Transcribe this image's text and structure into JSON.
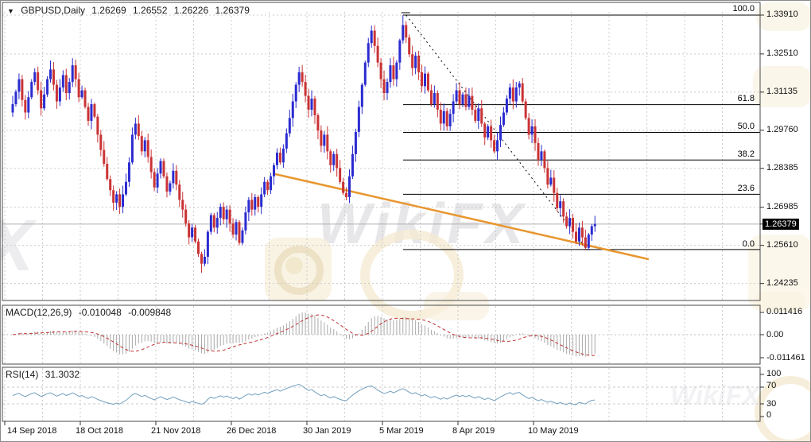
{
  "title_bar": {
    "dropdown_icon": "▼",
    "symbol": "GBPUSD,Daily",
    "open": "1.26269",
    "high": "1.26552",
    "low": "1.26226",
    "close": "1.26379"
  },
  "watermark": {
    "brand": "WikiFX",
    "left_fragment": "X",
    "corner_brand": "WikiFX"
  },
  "colors": {
    "bull": "#2B2BD0",
    "bear": "#CA3335",
    "grid": "#CBCBCB",
    "fib_line": "#000000",
    "trendline_orange": "#E8962F",
    "macd_histogram": "#A9A9A9",
    "macd_signal": "#C03030",
    "rsi_line": "#72A0BE",
    "current_price_line": "#B0B0B0",
    "current_price_bg": "#000000",
    "current_price_text": "#FFFFFF"
  },
  "price_axis": {
    "ticks": [
      "1.33910",
      "1.32510",
      "1.31135",
      "1.29760",
      "1.28385",
      "1.26985",
      "1.25610",
      "1.24235"
    ],
    "tick_values": [
      1.3391,
      1.3251,
      1.31135,
      1.2976,
      1.28385,
      1.26985,
      1.2561,
      1.24235
    ],
    "current_label": "1.26379",
    "current_value": 1.26379
  },
  "date_axis": {
    "labels": [
      "14 Sep 2018",
      "18 Oct 2018",
      "21 Nov 2018",
      "26 Dec 2018",
      "30 Jan 2019",
      "5 Mar 2019",
      "8 Apr 2019",
      "10 May 2019"
    ]
  },
  "macd_panel": {
    "header": "MACD(12,26,9)",
    "value_main": "-0.010048",
    "value_signal": "-0.009848",
    "axis": [
      "0.011416",
      "0.00",
      "-0.011461"
    ]
  },
  "rsi_panel": {
    "header": "RSI(14)",
    "value": "31.3032",
    "axis": [
      "100",
      "70",
      "30",
      "0"
    ],
    "overbought": 70,
    "oversold": 30
  },
  "chart_data": {
    "type": "candlestick",
    "symbol": "GBPUSD",
    "timeframe": "Daily",
    "title": "GBPUSD Daily with Fibonacci retracement, MACD(12,26,9), RSI(14)",
    "last_ohlc": {
      "open": 1.26269,
      "high": 1.26552,
      "low": 1.26226,
      "close": 1.26379
    },
    "price_axis_range": [
      1.24235,
      1.3391
    ],
    "closes": [
      1.307,
      1.3115,
      1.316,
      1.3085,
      1.304,
      1.3095,
      1.315,
      1.3185,
      1.312,
      1.3055,
      1.3105,
      1.316,
      1.3195,
      1.314,
      1.308,
      1.313,
      1.3175,
      1.311,
      1.315,
      1.321,
      1.316,
      1.3095,
      1.312,
      1.306,
      1.301,
      1.307,
      1.3025,
      1.296,
      1.2905,
      1.2855,
      1.28,
      1.276,
      1.2715,
      1.2745,
      1.27,
      1.2745,
      1.279,
      1.286,
      1.296,
      1.3,
      1.2955,
      1.29,
      1.294,
      1.288,
      1.2825,
      1.277,
      1.282,
      1.2865,
      1.281,
      1.2755,
      1.2785,
      1.283,
      1.278,
      1.2725,
      1.269,
      1.264,
      1.259,
      1.2625,
      1.2575,
      1.253,
      1.2495,
      1.252,
      1.261,
      1.267,
      1.2625,
      1.266,
      1.27,
      1.2655,
      1.269,
      1.264,
      1.26,
      1.2645,
      1.257,
      1.2615,
      1.268,
      1.2725,
      1.269,
      1.2735,
      1.27,
      1.2745,
      1.279,
      1.276,
      1.281,
      1.285,
      1.2895,
      1.286,
      1.291,
      1.2965,
      1.302,
      1.308,
      1.314,
      1.3185,
      1.315,
      1.31,
      1.305,
      1.309,
      1.303,
      1.2975,
      1.292,
      1.296,
      1.29,
      1.285,
      1.289,
      1.284,
      1.279,
      1.275,
      1.2735,
      1.281,
      1.289,
      1.297,
      1.306,
      1.314,
      1.322,
      1.329,
      1.3335,
      1.328,
      1.322,
      1.316,
      1.311,
      1.315,
      1.321,
      1.316,
      1.322,
      1.33,
      1.3355,
      1.331,
      1.325,
      1.32,
      1.3245,
      1.3185,
      1.3135,
      1.318,
      1.312,
      1.307,
      1.311,
      1.305,
      1.3,
      1.3045,
      1.299,
      1.3035,
      1.308,
      1.312,
      1.307,
      1.3105,
      1.306,
      1.31,
      1.305,
      1.301,
      1.3055,
      1.3,
      1.295,
      1.299,
      1.294,
      1.29,
      1.294,
      1.2995,
      1.304,
      1.309,
      1.313,
      1.308,
      1.313,
      1.3145,
      1.308,
      1.302,
      1.296,
      1.299,
      1.293,
      1.287,
      1.29,
      1.284,
      1.278,
      1.2805,
      1.275,
      1.2695,
      1.272,
      1.2665,
      1.263,
      1.266,
      1.261,
      1.2575,
      1.2625,
      1.259,
      1.2552,
      1.26,
      1.263,
      1.26379
    ],
    "wick_overrides": {
      "high": {
        "124": 1.3391
      },
      "low": {
        "60": 1.2462,
        "182": 1.2546
      }
    },
    "fibonacci": {
      "high": 1.3391,
      "low": 1.2546,
      "levels": [
        {
          "label": "100.0",
          "price": 1.3391
        },
        {
          "label": "61.8",
          "price": 1.30682
        },
        {
          "label": "50.0",
          "price": 1.29685
        },
        {
          "label": "38.2",
          "price": 1.28688
        },
        {
          "label": "23.6",
          "price": 1.27454
        },
        {
          "label": "0.0",
          "price": 1.2546
        }
      ],
      "baseline": {
        "from": {
          "i": 125,
          "price": 1.3391
        },
        "to": {
          "i": 182.5,
          "price": 1.2546
        },
        "style": "dashed"
      }
    },
    "trendline": {
      "from": {
        "i": 83.4,
        "price": 1.2818
      },
      "to": {
        "i": 202.1,
        "price": 1.2511
      },
      "style": "solid"
    },
    "indicators": [
      {
        "name": "MACD",
        "params": [
          12,
          26,
          9
        ],
        "last_main": -0.010048,
        "last_signal": -0.009848,
        "axis_range": [
          -0.011461,
          0.011416
        ]
      },
      {
        "name": "RSI",
        "params": [
          14
        ],
        "last": 31.3032,
        "axis_range": [
          0,
          100
        ],
        "levels": [
          70,
          30
        ]
      }
    ]
  }
}
